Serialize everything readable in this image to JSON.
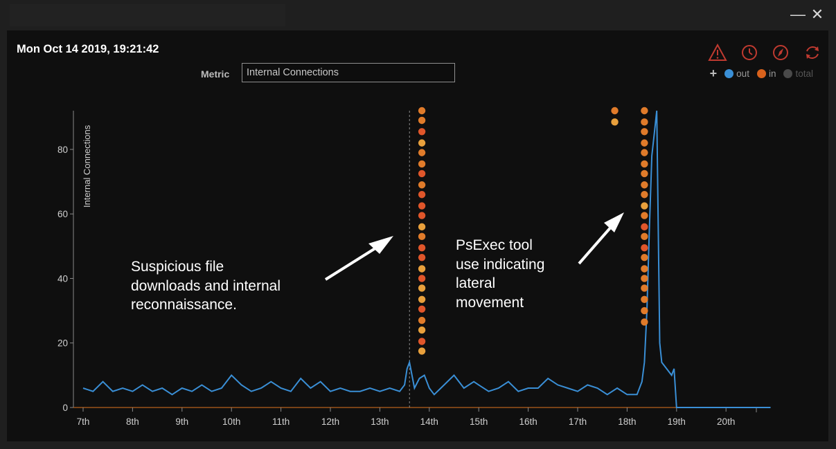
{
  "window": {
    "minimize_glyph": "—",
    "close_glyph": "✕"
  },
  "header": {
    "datetime": "Mon Oct 14 2019, 19:21:42",
    "metric_label": "Metric",
    "metric_value": "Internal Connections"
  },
  "toolbar": {
    "icons": [
      "alert-triangle-icon",
      "refresh-clock-icon",
      "compass-refresh-icon",
      "cycle-refresh-icon"
    ],
    "add_glyph": "+"
  },
  "legend": [
    {
      "label": "out",
      "color": "#3a8fd6"
    },
    {
      "label": "in",
      "color": "#d9621c"
    },
    {
      "label": "total",
      "color": "#4a4a4a"
    }
  ],
  "annotations": {
    "left_text": [
      "Suspicious file",
      "downloads and internal",
      "reconnaissance."
    ],
    "right_text": [
      "PsExec tool",
      "use indicating",
      "lateral",
      "movement"
    ]
  },
  "chart_data": {
    "type": "line",
    "ylabel": "Internal Connections",
    "y_ticks": [
      0,
      20,
      40,
      60,
      80
    ],
    "ylim": [
      0,
      92
    ],
    "xlim": [
      6.9,
      20.9
    ],
    "x_ticks": [
      {
        "value": 7,
        "label": "7th"
      },
      {
        "value": 8,
        "label": "8th"
      },
      {
        "value": 9,
        "label": "9th"
      },
      {
        "value": 10,
        "label": "10th"
      },
      {
        "value": 11,
        "label": "11th"
      },
      {
        "value": 12,
        "label": "12th"
      },
      {
        "value": 13,
        "label": "13th"
      },
      {
        "value": 14,
        "label": "14th"
      },
      {
        "value": 15,
        "label": "15th"
      },
      {
        "value": 16,
        "label": "16th"
      },
      {
        "value": 17,
        "label": "17th"
      },
      {
        "value": 18,
        "label": "18th"
      },
      {
        "value": 19,
        "label": "19th"
      },
      {
        "value": 20,
        "label": "20th"
      }
    ],
    "series": [
      {
        "name": "out",
        "color": "#3a8fd6",
        "points": [
          [
            7.0,
            6
          ],
          [
            7.2,
            5
          ],
          [
            7.4,
            8
          ],
          [
            7.6,
            5
          ],
          [
            7.8,
            6
          ],
          [
            8.0,
            5
          ],
          [
            8.2,
            7
          ],
          [
            8.4,
            5
          ],
          [
            8.6,
            6
          ],
          [
            8.8,
            4
          ],
          [
            9.0,
            6
          ],
          [
            9.2,
            5
          ],
          [
            9.4,
            7
          ],
          [
            9.6,
            5
          ],
          [
            9.8,
            6
          ],
          [
            10.0,
            10
          ],
          [
            10.2,
            7
          ],
          [
            10.4,
            5
          ],
          [
            10.6,
            6
          ],
          [
            10.8,
            8
          ],
          [
            11.0,
            6
          ],
          [
            11.2,
            5
          ],
          [
            11.4,
            9
          ],
          [
            11.6,
            6
          ],
          [
            11.8,
            8
          ],
          [
            12.0,
            5
          ],
          [
            12.2,
            6
          ],
          [
            12.4,
            5
          ],
          [
            12.6,
            5
          ],
          [
            12.8,
            6
          ],
          [
            13.0,
            5
          ],
          [
            13.2,
            6
          ],
          [
            13.4,
            5
          ],
          [
            13.5,
            7
          ],
          [
            13.55,
            12
          ],
          [
            13.6,
            14
          ],
          [
            13.7,
            6
          ],
          [
            13.8,
            9
          ],
          [
            13.9,
            10
          ],
          [
            14.0,
            6
          ],
          [
            14.1,
            4
          ],
          [
            14.3,
            7
          ],
          [
            14.5,
            10
          ],
          [
            14.7,
            6
          ],
          [
            14.9,
            8
          ],
          [
            15.0,
            7
          ],
          [
            15.2,
            5
          ],
          [
            15.4,
            6
          ],
          [
            15.6,
            8
          ],
          [
            15.8,
            5
          ],
          [
            16.0,
            6
          ],
          [
            16.2,
            6
          ],
          [
            16.4,
            9
          ],
          [
            16.6,
            7
          ],
          [
            16.8,
            6
          ],
          [
            17.0,
            5
          ],
          [
            17.2,
            7
          ],
          [
            17.4,
            6
          ],
          [
            17.6,
            4
          ],
          [
            17.8,
            6
          ],
          [
            18.0,
            4
          ],
          [
            18.2,
            4
          ],
          [
            18.3,
            8
          ],
          [
            18.35,
            14
          ],
          [
            18.4,
            30
          ],
          [
            18.45,
            55
          ],
          [
            18.5,
            78
          ],
          [
            18.55,
            85
          ],
          [
            18.6,
            92
          ],
          [
            18.63,
            55
          ],
          [
            18.66,
            20
          ],
          [
            18.7,
            14
          ],
          [
            18.8,
            12
          ],
          [
            18.9,
            10
          ],
          [
            18.95,
            12
          ],
          [
            19.0,
            0
          ],
          [
            20.9,
            0
          ]
        ]
      }
    ],
    "marker_day": 13.6,
    "event_columns": [
      {
        "x": 13.85,
        "y_values": [
          92,
          89,
          85.5,
          82,
          79,
          75.5,
          72.5,
          69,
          66,
          62.5,
          59.5,
          56,
          53,
          49.5,
          46.5,
          43,
          40,
          37,
          33.5,
          30.5,
          27,
          24,
          20.5,
          17.5
        ],
        "colors": [
          "#e07b2a",
          "#e07b2a",
          "#e0562a",
          "#e8a03c",
          "#e07b2a",
          "#e07b2a",
          "#e0562a",
          "#e07b2a",
          "#e0562a",
          "#e0562a",
          "#e0562a",
          "#e8a03c",
          "#e07b2a",
          "#e0562a",
          "#e0562a",
          "#e8a03c",
          "#e0562a",
          "#e8a03c",
          "#e8a03c",
          "#e0562a",
          "#e07b2a",
          "#e8a03c",
          "#e0562a",
          "#e8a03c"
        ]
      },
      {
        "x": 17.75,
        "y_values": [
          92,
          88.5
        ],
        "colors": [
          "#e07b2a",
          "#e8a03c"
        ]
      },
      {
        "x": 18.35,
        "y_values": [
          92,
          88.5,
          85.5,
          82,
          79,
          75.5,
          72.5,
          69,
          66,
          62.5,
          59.5,
          56,
          53,
          49.5,
          46.5,
          43,
          40,
          37,
          33.5,
          30,
          26.5
        ],
        "colors": [
          "#e07b2a",
          "#e07b2a",
          "#e07b2a",
          "#e07b2a",
          "#e07b2a",
          "#e07b2a",
          "#e07b2a",
          "#e07b2a",
          "#e07b2a",
          "#e8a03c",
          "#e07b2a",
          "#e0562a",
          "#e07b2a",
          "#e0562a",
          "#e07b2a",
          "#e07b2a",
          "#e07b2a",
          "#e07b2a",
          "#e07b2a",
          "#e07b2a",
          "#e07b2a"
        ]
      }
    ]
  }
}
